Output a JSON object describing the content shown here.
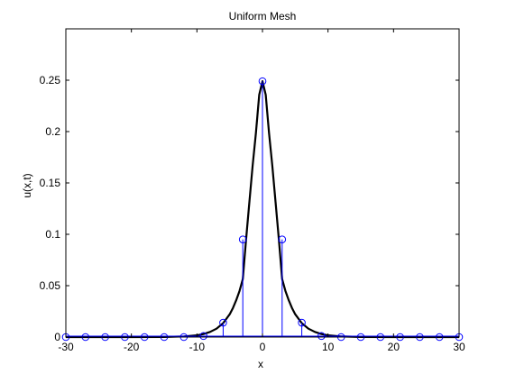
{
  "chart_data": {
    "type": "line",
    "title": "Uniform Mesh",
    "xlabel": "x",
    "ylabel": "u(x,t)",
    "xlim": [
      -30,
      30
    ],
    "ylim": [
      0,
      0.3
    ],
    "xticks": [
      -30,
      -20,
      -10,
      0,
      10,
      20,
      30
    ],
    "xtick_labels": [
      "-30",
      "-20",
      "-10",
      "0",
      "10",
      "20",
      "30"
    ],
    "yticks": [
      0,
      0.05,
      0.1,
      0.15,
      0.2,
      0.25
    ],
    "ytick_labels": [
      "0",
      "0.05",
      "0.1",
      "0.15",
      "0.2",
      "0.25"
    ],
    "grid": false,
    "legend": false,
    "series": [
      {
        "kind": "curve",
        "color": "#000000",
        "x": [
          -30,
          -20,
          -15,
          -12,
          -10,
          -9,
          -8,
          -7,
          -6,
          -5,
          -4.5,
          -4,
          -3.5,
          -3,
          -2.5,
          -2,
          -1.5,
          -1,
          -0.5,
          0,
          0.5,
          1,
          1.5,
          2,
          2.5,
          3,
          3.5,
          4,
          4.5,
          5,
          6,
          7,
          8,
          9,
          10,
          12,
          15,
          20,
          30
        ],
        "y": [
          0,
          0,
          0.0001,
          0.0006,
          0.0017,
          0.0029,
          0.005,
          0.0082,
          0.0135,
          0.0222,
          0.0283,
          0.0359,
          0.045,
          0.0564,
          0.0947,
          0.1315,
          0.1668,
          0.1983,
          0.2359,
          0.249,
          0.2359,
          0.1983,
          0.1668,
          0.1315,
          0.0947,
          0.0564,
          0.045,
          0.0359,
          0.0283,
          0.0222,
          0.0135,
          0.0082,
          0.005,
          0.0029,
          0.0017,
          0.0006,
          0.0001,
          0,
          0
        ]
      },
      {
        "kind": "stem",
        "color": "#0000ff",
        "x": [
          -30,
          -27,
          -24,
          -21,
          -18,
          -15,
          -12,
          -9,
          -6,
          -3,
          0,
          3,
          6,
          9,
          12,
          15,
          18,
          21,
          24,
          27,
          30
        ],
        "y": [
          0,
          0,
          0,
          0,
          0,
          0,
          0,
          0.001,
          0.014,
          0.095,
          0.249,
          0.095,
          0.014,
          0.001,
          0,
          0,
          0,
          0,
          0,
          0,
          0
        ]
      }
    ]
  }
}
